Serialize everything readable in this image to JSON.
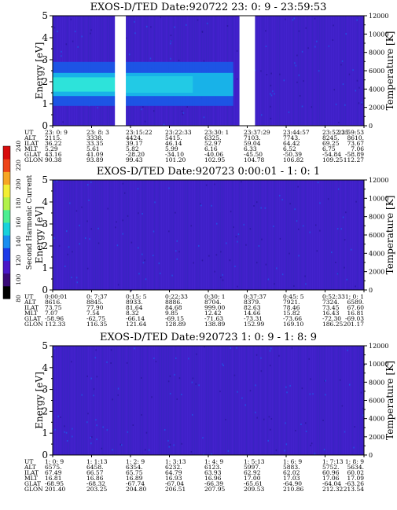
{
  "colorbar": {
    "label": "Second Harmonic Current",
    "ticks": [
      "80",
      "100",
      "120",
      "140",
      "160",
      "180",
      "200",
      "220",
      "240"
    ],
    "colors": [
      "#000000",
      "#3a0a78",
      "#4a18c8",
      "#1d3ae8",
      "#1a8ef0",
      "#18d2dc",
      "#4cee92",
      "#b2f24a",
      "#f2ee34",
      "#f6a624",
      "#ee4418",
      "#d80c0c"
    ]
  },
  "chart_data": [
    {
      "type": "heatmap",
      "title": "EXOS-D/TED   Date:920722  23: 0: 9 - 23:59:53",
      "ylabel": "Energy [eV]",
      "ylabel_right": "Temperature [K]",
      "ylim": [
        0,
        5
      ],
      "y_ticks": [
        "0",
        "1",
        "2",
        "3",
        "4",
        "5"
      ],
      "y2lim": [
        0,
        12000
      ],
      "y2_ticks": [
        "0",
        "2000",
        "4000",
        "6000",
        "8000",
        "10000",
        "12000"
      ],
      "data_gaps": [
        [
          0.2,
          0.235
        ],
        [
          0.6,
          0.65
        ]
      ],
      "bands": [
        {
          "from": 0.0,
          "to": 0.58,
          "ylo": 0.9,
          "yhi": 2.9,
          "color": "#1a5ae8"
        },
        {
          "from": 0.0,
          "to": 0.58,
          "ylo": 1.35,
          "yhi": 2.4,
          "color": "#18bce8"
        },
        {
          "from": 0.0,
          "to": 0.2,
          "ylo": 1.55,
          "yhi": 2.2,
          "color": "#30e8d8"
        },
        {
          "from": 0.235,
          "to": 0.45,
          "ylo": 1.5,
          "yhi": 2.25,
          "color": "#24cce4"
        }
      ],
      "orbit": {
        "row_labels": [
          "UT",
          "ALT",
          "ILAT",
          "MLT",
          "GLAT",
          "GLON"
        ],
        "columns": [
          [
            "23: 0: 9",
            "2115.",
            "36.22",
            "5.29",
            "43.16",
            "90.38"
          ],
          [
            "23: 8: 3",
            "3338.",
            "33.35",
            "5.61",
            "41.09",
            "93.89"
          ],
          [
            "23:15:22",
            "4424.",
            "39.17",
            "5.82",
            "-28.20",
            "99.43"
          ],
          [
            "23:22:33",
            "5415.",
            "46.14",
            "5.99",
            "-34.10",
            "101.20"
          ],
          [
            "23:30: 1",
            "6325.",
            "52.97",
            "6.16",
            "-40.06",
            "102.95"
          ],
          [
            "23:37:29",
            "7103.",
            "59.04",
            "6.33",
            "-45.50",
            "104.78"
          ],
          [
            "23:44:57",
            "7743.",
            "64.42",
            "6.52",
            "-50.39",
            "106.82"
          ],
          [
            "23:52:25",
            "8245.",
            "69.25",
            "6.75",
            "-54.84",
            "109.25"
          ],
          [
            "23:59:53",
            "8610.",
            "73.67",
            "7.06",
            "-58.89",
            "112.27"
          ]
        ]
      }
    },
    {
      "type": "heatmap",
      "title": "EXOS-D/TED   Date:920723  0:00:01 - 1: 0: 1",
      "ylabel": "Energy [eV]",
      "ylabel_right": "Temperature [K]",
      "ylim": [
        0,
        5
      ],
      "y_ticks": [
        "0",
        "1",
        "2",
        "3",
        "4",
        "5"
      ],
      "y2lim": [
        0,
        12000
      ],
      "y2_ticks": [
        "0",
        "2000",
        "4000",
        "6000",
        "8000",
        "10000",
        "12000"
      ],
      "data_gaps": [],
      "bands": [],
      "orbit": {
        "row_labels": [
          "UT",
          "ALT",
          "ILAT",
          "MLT",
          "GLAT",
          "GLON"
        ],
        "columns": [
          [
            "0:00:01",
            "8616.",
            "73.75",
            "7.07",
            "-58.96",
            "112.33"
          ],
          [
            "0: 7:37",
            "8845.",
            "77.90",
            "7.54",
            "-62.75",
            "116.35"
          ],
          [
            "0:15: 5",
            "8933.",
            "81.64",
            "8.32",
            "-66.14",
            "121.64"
          ],
          [
            "0:22:33",
            "8886.",
            "84.68",
            "9.85",
            "-69.15",
            "128.89"
          ],
          [
            "0:30: 1",
            "8704.",
            "999.00",
            "12.42",
            "-71.63",
            "138.89"
          ],
          [
            "0:37:37",
            "8379.",
            "82.63",
            "14.66",
            "-73.31",
            "152.99"
          ],
          [
            "0:45: 5",
            "7921.",
            "78.46",
            "15.82",
            "-73.66",
            "169.10"
          ],
          [
            "0:52:33",
            "7324.",
            "73.45",
            "16.43",
            "-72.30",
            "186.25"
          ],
          [
            "1: 0: 1",
            "6589.",
            "67.60",
            "16.81",
            "-69.03",
            "201.17"
          ]
        ]
      }
    },
    {
      "type": "heatmap",
      "title": "EXOS-D/TED   Date:920723  1: 0: 9 - 1: 8: 9",
      "ylabel": "Energy [eV]",
      "ylabel_right": "Temperature [K]",
      "ylim": [
        0,
        5
      ],
      "y_ticks": [
        "0",
        "1",
        "2",
        "3",
        "4",
        "5"
      ],
      "y2lim": [
        0,
        12000
      ],
      "y2_ticks": [
        "0",
        "2000",
        "4000",
        "6000",
        "8000",
        "10000",
        "12000"
      ],
      "data_gaps": [],
      "bands": [],
      "orbit": {
        "row_labels": [
          "UT",
          "ALT",
          "ILAT",
          "MLT",
          "GLAT",
          "GLON"
        ],
        "columns": [
          [
            "1: 0: 9",
            "6575.",
            "67.49",
            "16.81",
            "-68.95",
            "201.40"
          ],
          [
            "1: 1:13",
            "6458.",
            "66.57",
            "16.86",
            "-68.32",
            "203.25"
          ],
          [
            "1: 2: 9",
            "6354.",
            "65.75",
            "16.89",
            "-67.74",
            "204.80"
          ],
          [
            "1: 3:13",
            "6232.",
            "64.79",
            "16.93",
            "-67.04",
            "206.51"
          ],
          [
            "1: 4: 9",
            "6123.",
            "63.93",
            "16.96",
            "-66.39",
            "207.95"
          ],
          [
            "1: 5:13",
            "5997.",
            "62.92",
            "17.00",
            "-65.61",
            "209.53"
          ],
          [
            "1: 6: 9",
            "5883.",
            "62.02",
            "17.03",
            "-64.90",
            "210.86"
          ],
          [
            "1: 7:13",
            "5752.",
            "60.96",
            "17.06",
            "-64.04",
            "212.32"
          ],
          [
            "1: 8: 9",
            "5634.",
            "60.02",
            "17.09",
            "-63.26",
            "213.54"
          ]
        ]
      }
    }
  ]
}
